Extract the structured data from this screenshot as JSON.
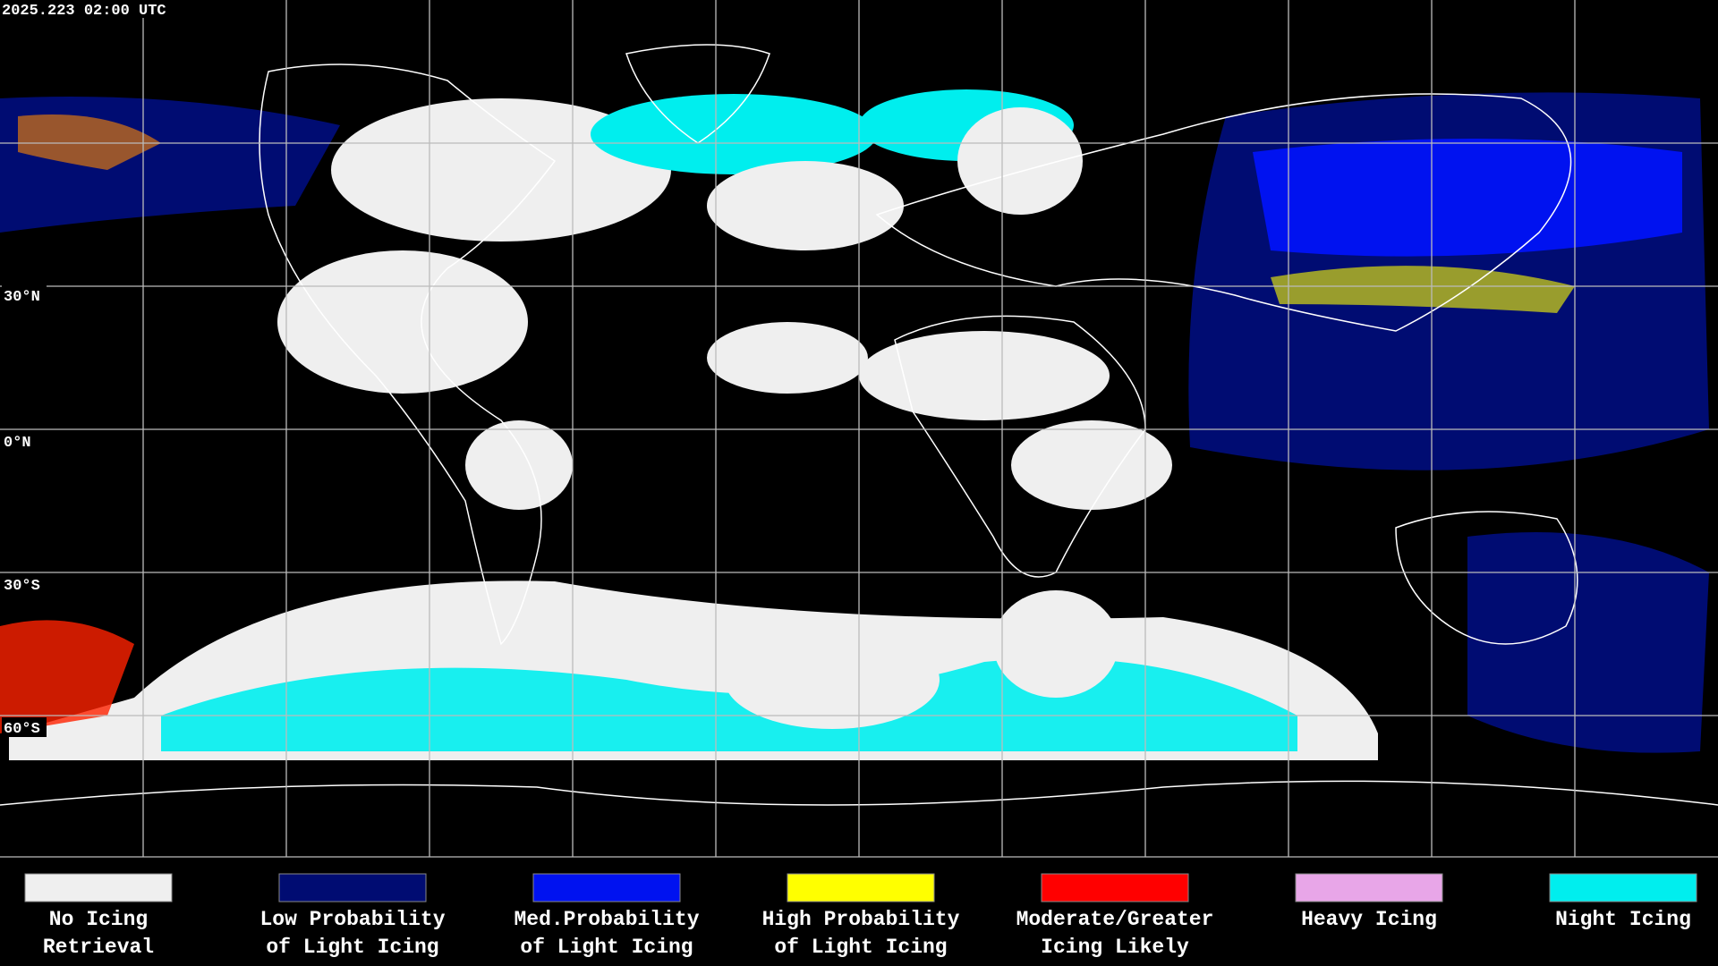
{
  "timestamp": "2025.223 02:00 UTC",
  "latitude_labels": [
    "30°N",
    "0°N",
    "30°S",
    "60°S"
  ],
  "legend": [
    {
      "lines": [
        "No Icing",
        "Retrieval"
      ],
      "color": "#efefef"
    },
    {
      "lines": [
        "Low Probability",
        "of Light Icing"
      ],
      "color": "#000c72"
    },
    {
      "lines": [
        "Med.Probability",
        "of Light Icing"
      ],
      "color": "#0012f0"
    },
    {
      "lines": [
        "High Probability",
        "of Light Icing"
      ],
      "color": "#ffff00"
    },
    {
      "lines": [
        "Moderate/Greater",
        "Icing Likely"
      ],
      "color": "#ff0000"
    },
    {
      "lines": [
        "Heavy Icing"
      ],
      "color": "#e8a6e8"
    },
    {
      "lines": [
        "Night Icing"
      ],
      "color": "#00eeee"
    }
  ]
}
